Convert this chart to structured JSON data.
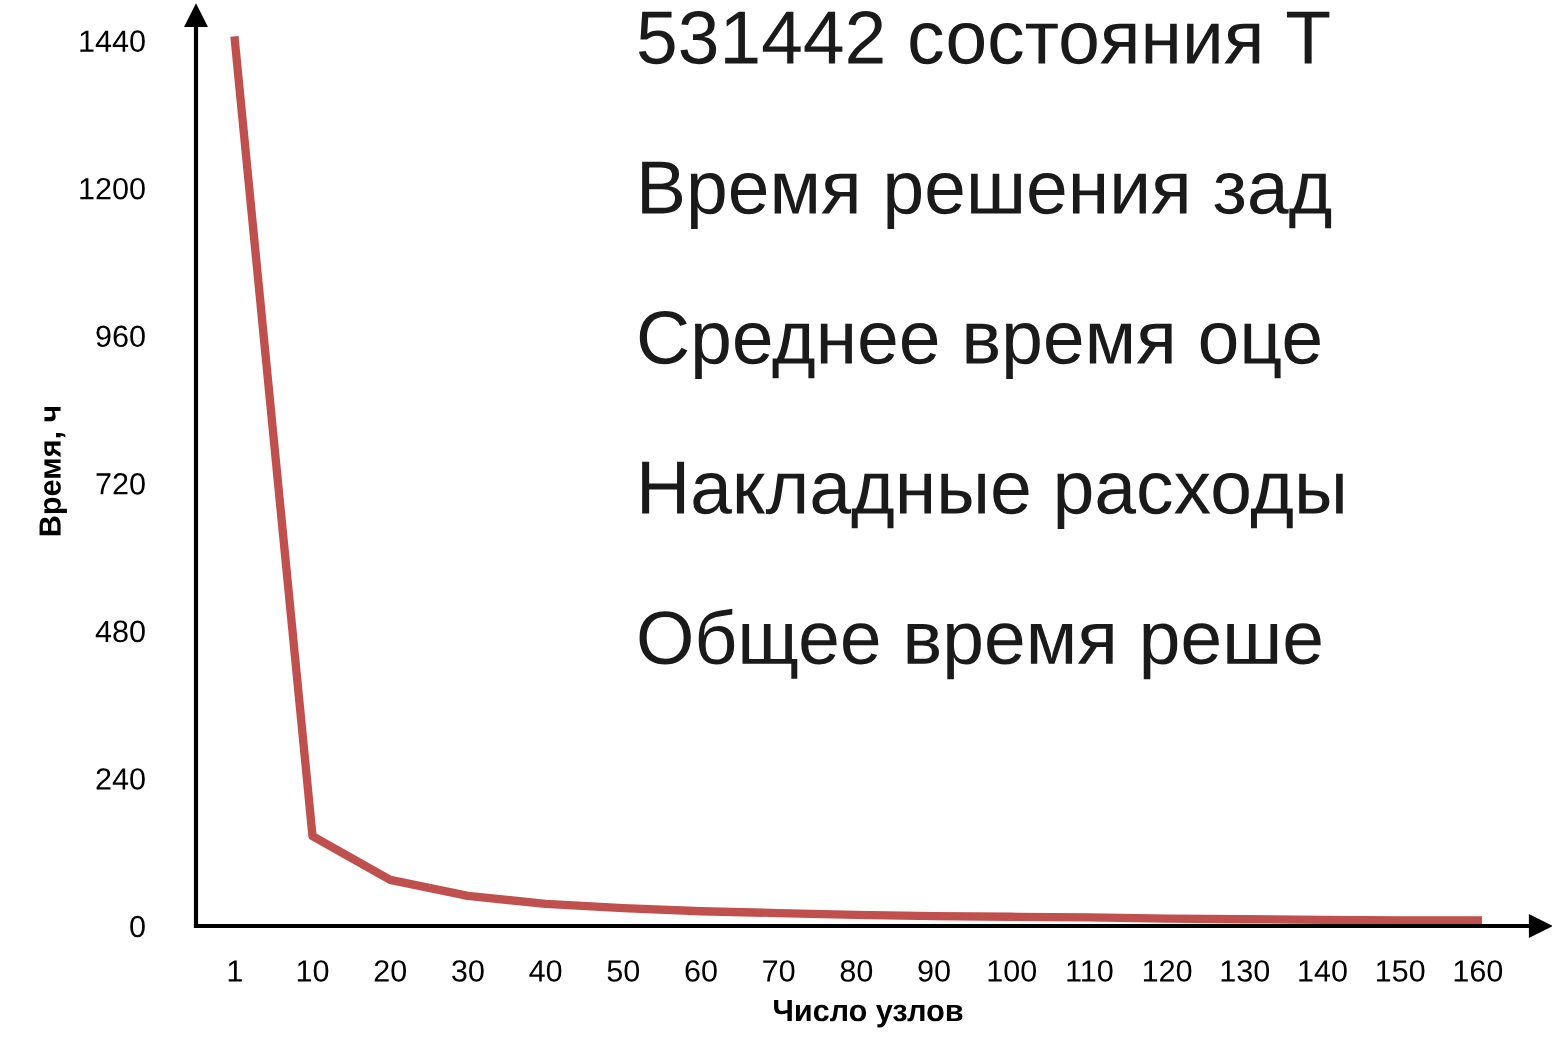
{
  "chart_data": {
    "type": "line",
    "xlabel": "Число узлов",
    "ylabel": "Время, ч",
    "categories": [
      "1",
      "10",
      "20",
      "30",
      "40",
      "50",
      "60",
      "70",
      "80",
      "90",
      "100",
      "110",
      "120",
      "130",
      "140",
      "150",
      "160"
    ],
    "series": [
      {
        "color": "#c0504d",
        "values": [
          1440,
          146,
          75,
          49,
          36,
          29,
          24,
          21,
          18,
          16,
          15,
          14,
          12,
          11,
          10,
          9,
          9
        ]
      }
    ],
    "ylim": [
      0,
      1480
    ],
    "yticks": [
      0,
      240,
      480,
      720,
      960,
      1200,
      1440
    ],
    "grid": false,
    "marker": "none",
    "line_style": "solid",
    "annotations": [
      "531442 состояния Т",
      "Время решения зад",
      "Среднее время оце",
      "Накладные расходы",
      "Общее время реше"
    ]
  }
}
